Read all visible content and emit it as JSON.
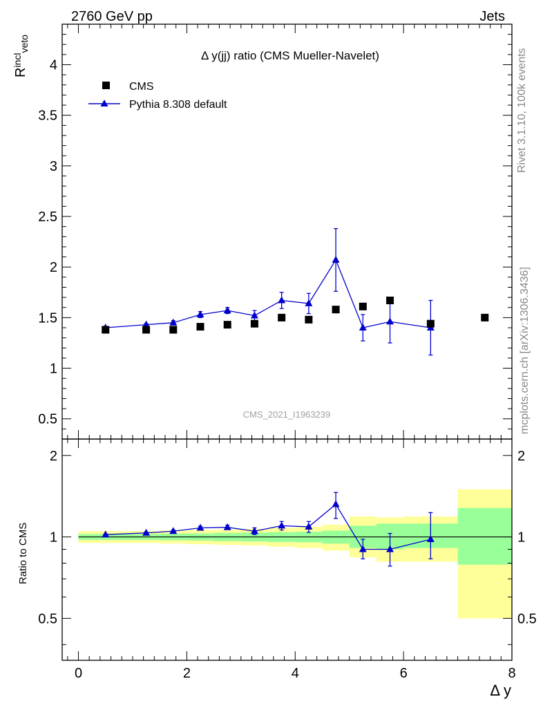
{
  "header": {
    "left": "2760 GeV pp",
    "right": "Jets"
  },
  "side_labels": {
    "rivet": "Rivet 3.1.10,  100k events",
    "mcplots": "mcplots.cern.ch [arXiv:1306.3436]"
  },
  "watermark": "CMS_2021_I1963239",
  "colors": {
    "data": "#000000",
    "mc": "#0000cc",
    "band_outer": "#ffff99",
    "band_inner": "#99ff99"
  },
  "chart_data": [
    {
      "type": "scatter",
      "title": "Δ y(jj) ratio (CMS Mueller-Navelet)",
      "ylabel_main": "R",
      "ylabel_sup": "incl",
      "ylabel_sub": "veto",
      "xlim": [
        -0.3,
        8
      ],
      "ylim": [
        0.3,
        4.4
      ],
      "yticks": [
        0.5,
        1,
        1.5,
        2,
        2.5,
        3,
        3.5,
        4
      ],
      "ytick_labels": [
        "0.5",
        "1",
        "1.5",
        "2",
        "2.5",
        "3",
        "3.5",
        "4"
      ],
      "legend_position": "top-left",
      "series": [
        {
          "name": "CMS",
          "marker": "square",
          "x": [
            0.5,
            1.25,
            1.75,
            2.25,
            2.75,
            3.25,
            3.75,
            4.25,
            4.75,
            5.25,
            5.75,
            6.5,
            7.5
          ],
          "y": [
            1.38,
            1.38,
            1.38,
            1.41,
            1.43,
            1.44,
            1.5,
            1.48,
            1.58,
            1.61,
            1.67,
            1.44,
            1.5
          ]
        },
        {
          "name": "Pythia 8.308 default",
          "marker": "triangle",
          "x": [
            0.5,
            1.25,
            1.75,
            2.25,
            2.75,
            3.25,
            3.75,
            4.25,
            4.75,
            5.25,
            5.75,
            6.5
          ],
          "y": [
            1.4,
            1.43,
            1.45,
            1.53,
            1.57,
            1.52,
            1.67,
            1.64,
            2.07,
            1.4,
            1.46,
            1.4
          ],
          "err": [
            0.01,
            0.01,
            0.02,
            0.03,
            0.03,
            0.05,
            0.08,
            0.1,
            0.31,
            0.13,
            0.21,
            0.27
          ]
        }
      ]
    },
    {
      "type": "scatter",
      "ylabel": "Ratio to CMS",
      "xlabel": "Δ y",
      "xlim": [
        -0.3,
        8
      ],
      "ylim": [
        0.35,
        2.3
      ],
      "log_y": true,
      "yticks": [
        0.5,
        1,
        2
      ],
      "ytick_labels": [
        "0.5",
        "1",
        "2"
      ],
      "xticks": [
        0,
        2,
        4,
        6,
        8
      ],
      "xtick_labels": [
        "0",
        "2",
        "4",
        "6",
        "8"
      ],
      "bands": [
        {
          "x0": 0,
          "x1": 1,
          "outer": [
            0.95,
            1.05
          ],
          "inner": [
            0.975,
            1.025
          ]
        },
        {
          "x0": 1,
          "x1": 1.5,
          "outer": [
            0.95,
            1.05
          ],
          "inner": [
            0.975,
            1.025
          ]
        },
        {
          "x0": 1.5,
          "x1": 2,
          "outer": [
            0.945,
            1.055
          ],
          "inner": [
            0.972,
            1.028
          ]
        },
        {
          "x0": 2,
          "x1": 2.5,
          "outer": [
            0.94,
            1.06
          ],
          "inner": [
            0.97,
            1.03
          ]
        },
        {
          "x0": 2.5,
          "x1": 3,
          "outer": [
            0.935,
            1.065
          ],
          "inner": [
            0.965,
            1.035
          ]
        },
        {
          "x0": 3,
          "x1": 3.5,
          "outer": [
            0.93,
            1.07
          ],
          "inner": [
            0.962,
            1.038
          ]
        },
        {
          "x0": 3.5,
          "x1": 4,
          "outer": [
            0.92,
            1.08
          ],
          "inner": [
            0.958,
            1.042
          ]
        },
        {
          "x0": 4,
          "x1": 4.5,
          "outer": [
            0.91,
            1.09
          ],
          "inner": [
            0.955,
            1.045
          ]
        },
        {
          "x0": 4.5,
          "x1": 5,
          "outer": [
            0.89,
            1.11
          ],
          "inner": [
            0.945,
            1.055
          ]
        },
        {
          "x0": 5,
          "x1": 5.5,
          "outer": [
            0.84,
            1.19
          ],
          "inner": [
            0.91,
            1.1
          ]
        },
        {
          "x0": 5.5,
          "x1": 6,
          "outer": [
            0.81,
            1.18
          ],
          "inner": [
            0.9,
            1.12
          ]
        },
        {
          "x0": 6,
          "x1": 7,
          "outer": [
            0.81,
            1.19
          ],
          "inner": [
            0.91,
            1.12
          ]
        },
        {
          "x0": 7,
          "x1": 8,
          "outer": [
            0.5,
            1.5
          ],
          "inner": [
            0.79,
            1.28
          ]
        }
      ],
      "series": [
        {
          "name": "Pythia 8.308 default",
          "x": [
            0.5,
            1.25,
            1.75,
            2.25,
            2.75,
            3.25,
            3.75,
            4.25,
            4.75,
            5.25,
            5.75,
            6.5
          ],
          "y": [
            1.02,
            1.035,
            1.05,
            1.08,
            1.085,
            1.05,
            1.1,
            1.09,
            1.32,
            0.9,
            0.9,
            0.98
          ],
          "err_lo": [
            0.005,
            0.008,
            0.01,
            0.015,
            0.02,
            0.03,
            0.04,
            0.05,
            0.15,
            0.07,
            0.12,
            0.15
          ],
          "err_hi": [
            0.005,
            0.008,
            0.01,
            0.015,
            0.02,
            0.03,
            0.04,
            0.05,
            0.14,
            0.08,
            0.13,
            0.25
          ]
        }
      ]
    }
  ]
}
